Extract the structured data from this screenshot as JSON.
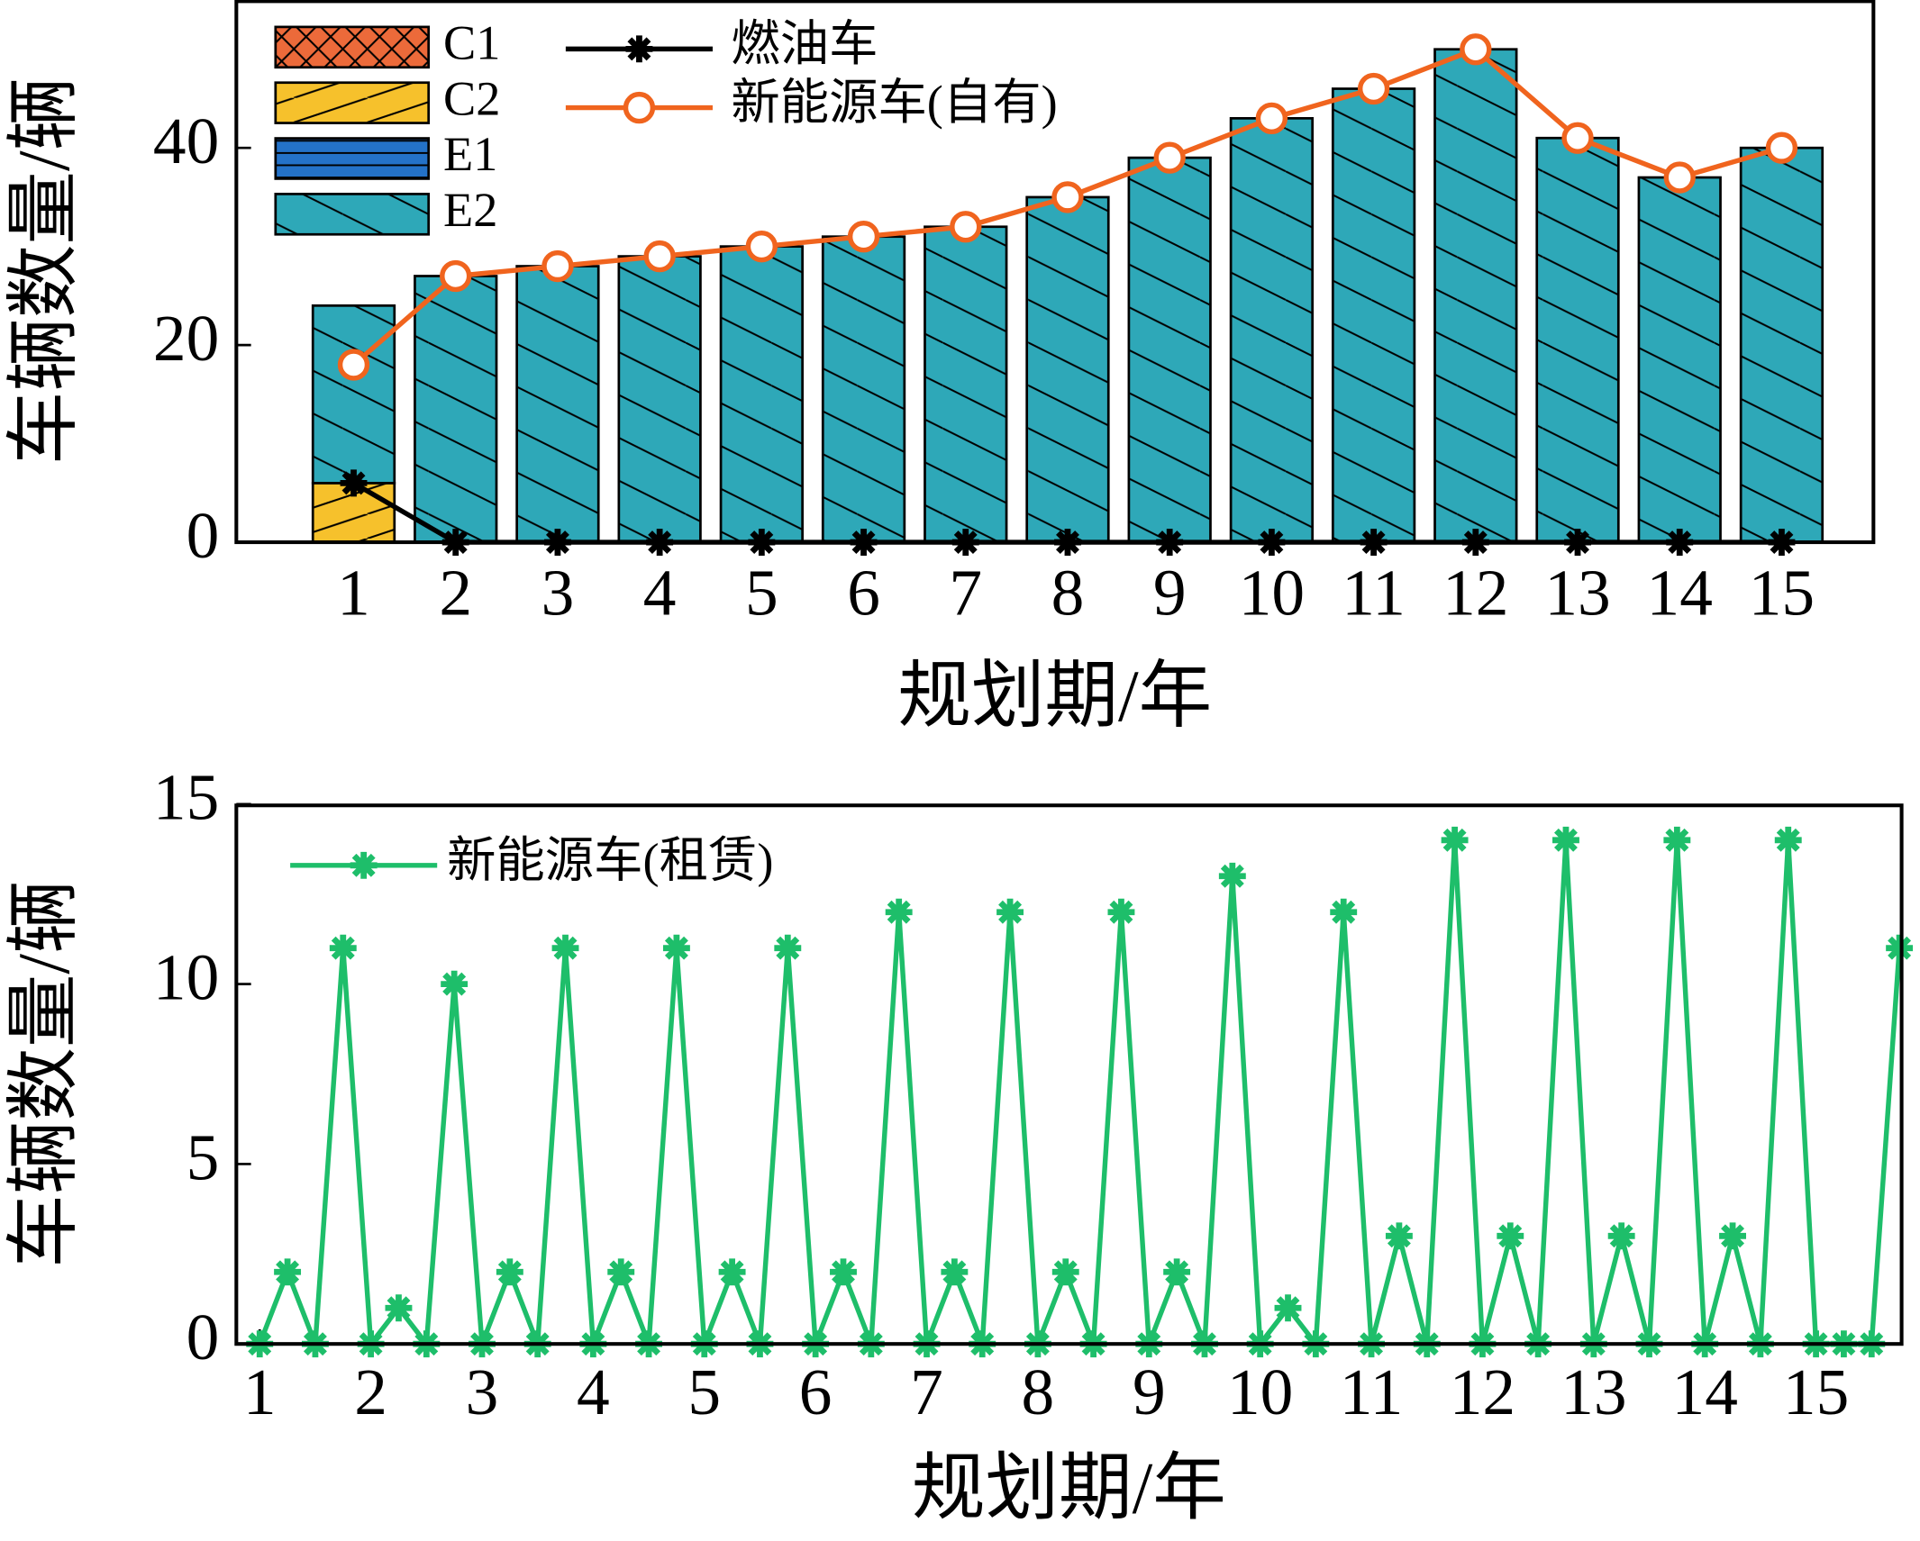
{
  "chart_data": [
    {
      "type": "bar",
      "xlabel": "规划期/年",
      "ylabel": "车辆数量/辆",
      "categories": [
        "1",
        "2",
        "3",
        "4",
        "5",
        "6",
        "7",
        "8",
        "9",
        "10",
        "11",
        "12",
        "13",
        "14",
        "15"
      ],
      "xlim": [
        -0.15,
        15.9
      ],
      "ylim": [
        0,
        55
      ],
      "yticks": [
        0,
        20,
        40
      ],
      "series": [
        {
          "name": "C1",
          "type": "bar",
          "color": "#ec6a3a",
          "values": [
            0,
            0,
            0,
            0,
            0,
            0,
            0,
            0,
            0,
            0,
            0,
            0,
            0,
            0,
            0
          ]
        },
        {
          "name": "C2",
          "type": "bar",
          "color": "#f6c12c",
          "values": [
            6,
            0,
            0,
            0,
            0,
            0,
            0,
            0,
            0,
            0,
            0,
            0,
            0,
            0,
            0
          ]
        },
        {
          "name": "E1",
          "type": "bar",
          "color": "#2472c8",
          "values": [
            0,
            0,
            0,
            0,
            0,
            0,
            0,
            0,
            0,
            0,
            0,
            0,
            0,
            0,
            0
          ]
        },
        {
          "name": "E2",
          "type": "bar",
          "color": "#2ea8b8",
          "values": [
            18,
            27,
            28,
            29,
            30,
            31,
            32,
            35,
            39,
            43,
            46,
            50,
            41,
            37,
            40
          ]
        },
        {
          "name": "燃油车",
          "type": "line",
          "marker": "*",
          "color": "#000000",
          "values": [
            6,
            0,
            0,
            0,
            0,
            0,
            0,
            0,
            0,
            0,
            0,
            0,
            0,
            0,
            0
          ]
        },
        {
          "name": "新能源车(自有)",
          "type": "line",
          "marker": "o",
          "color": "#f0641e",
          "values": [
            18,
            27,
            28,
            29,
            30,
            31,
            32,
            35,
            39,
            43,
            46,
            50,
            41,
            37,
            40
          ]
        }
      ]
    },
    {
      "type": "line",
      "xlabel": "规划期/年",
      "ylabel": "车辆数量/辆",
      "x": [
        1,
        1.25,
        1.5,
        1.75,
        2,
        2.25,
        2.5,
        2.75,
        3,
        3.25,
        3.5,
        3.75,
        4,
        4.25,
        4.5,
        4.75,
        5,
        5.25,
        5.5,
        5.75,
        6,
        6.25,
        6.5,
        6.75,
        7,
        7.25,
        7.5,
        7.75,
        8,
        8.25,
        8.5,
        8.75,
        9,
        9.25,
        9.5,
        9.75,
        10,
        10.25,
        10.5,
        10.75,
        11,
        11.25,
        11.5,
        11.75,
        12,
        12.25,
        12.5,
        12.75,
        13,
        13.25,
        13.5,
        13.75,
        14,
        14.25,
        14.5,
        14.75,
        15,
        15.25,
        15.5,
        15.75
      ],
      "xlim": [
        0.79,
        15.77
      ],
      "xticks": [
        1,
        2,
        3,
        4,
        5,
        6,
        7,
        8,
        9,
        10,
        11,
        12,
        13,
        14,
        15
      ],
      "ylim": [
        0,
        15
      ],
      "yticks": [
        0,
        5,
        10,
        15
      ],
      "series": [
        {
          "name": "新能源车(租赁)",
          "marker": "*",
          "color": "#1ebe6a",
          "values": [
            0,
            2,
            0,
            11,
            0,
            1,
            0,
            10,
            0,
            2,
            0,
            11,
            0,
            2,
            0,
            11,
            0,
            2,
            0,
            11,
            0,
            2,
            0,
            12,
            0,
            2,
            0,
            12,
            0,
            2,
            0,
            12,
            0,
            2,
            0,
            13,
            0,
            1,
            0,
            12,
            0,
            3,
            0,
            14,
            0,
            3,
            0,
            14,
            0,
            3,
            0,
            14,
            0,
            3,
            0,
            14,
            0,
            0,
            0,
            11
          ]
        }
      ]
    }
  ]
}
